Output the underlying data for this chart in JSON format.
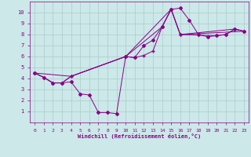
{
  "xlabel": "Windchill (Refroidissement éolien,°C)",
  "bg_color": "#cce8e8",
  "grid_color": "#aacccc",
  "line_color": "#880088",
  "xlim": [
    -0.5,
    23.5
  ],
  "ylim": [
    0,
    11
  ],
  "xticks": [
    0,
    1,
    2,
    3,
    4,
    5,
    6,
    7,
    8,
    9,
    10,
    11,
    12,
    13,
    14,
    15,
    16,
    17,
    18,
    19,
    20,
    21,
    22,
    23
  ],
  "yticks": [
    1,
    2,
    3,
    4,
    5,
    6,
    7,
    8,
    9,
    10
  ],
  "series1_x": [
    0,
    1,
    2,
    3,
    4,
    5,
    6,
    7,
    8,
    9,
    10,
    11,
    12,
    13,
    14,
    15,
    16,
    17,
    18,
    19,
    20,
    21,
    22,
    23
  ],
  "series1_y": [
    4.5,
    4.1,
    3.6,
    3.6,
    3.7,
    2.6,
    2.5,
    0.9,
    0.9,
    0.8,
    6.0,
    5.9,
    7.0,
    7.5,
    8.7,
    10.3,
    10.4,
    9.3,
    8.0,
    7.8,
    7.9,
    8.0,
    8.5,
    8.3
  ],
  "series2_x": [
    0,
    1,
    2,
    3,
    4,
    10,
    11,
    12,
    13,
    14,
    15,
    16,
    20,
    21,
    22,
    23
  ],
  "series2_y": [
    4.5,
    4.1,
    3.6,
    3.6,
    4.2,
    6.0,
    5.9,
    6.1,
    6.5,
    8.7,
    10.3,
    8.0,
    7.9,
    8.0,
    8.5,
    8.3
  ],
  "series3_x": [
    0,
    1,
    2,
    3,
    4,
    10,
    14,
    15,
    16,
    22,
    23
  ],
  "series3_y": [
    4.5,
    4.1,
    3.6,
    3.6,
    4.2,
    6.0,
    8.7,
    10.3,
    8.0,
    8.5,
    8.3
  ],
  "series4_x": [
    0,
    4,
    10,
    15,
    16,
    23
  ],
  "series4_y": [
    4.5,
    4.2,
    6.0,
    10.3,
    8.0,
    8.3
  ]
}
